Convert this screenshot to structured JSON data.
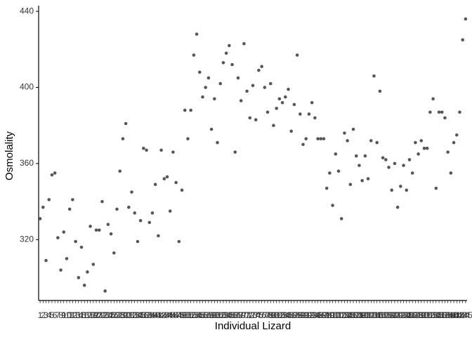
{
  "chart_data": {
    "type": "scatter",
    "x_label": "Individual Lizard",
    "y_label": "Osmolality",
    "categories": [
      "1",
      "2",
      "3",
      "4",
      "5",
      "6",
      "7",
      "8",
      "9",
      "10",
      "11",
      "12",
      "13",
      "14",
      "15",
      "16",
      "17",
      "18",
      "19",
      "20",
      "21",
      "22",
      "23",
      "24",
      "25",
      "26",
      "27",
      "28",
      "29",
      "30",
      "31",
      "32",
      "33",
      "34",
      "35",
      "36",
      "37",
      "38",
      "39",
      "40",
      "41",
      "42",
      "43",
      "44",
      "45",
      "46",
      "47",
      "48",
      "49",
      "50",
      "51",
      "52",
      "53",
      "54",
      "55",
      "56",
      "57",
      "58",
      "59",
      "60",
      "61",
      "62",
      "63",
      "64",
      "65",
      "66",
      "67",
      "68",
      "69",
      "70",
      "71",
      "72",
      "73",
      "74",
      "75",
      "76",
      "77",
      "78",
      "79",
      "80",
      "81",
      "82",
      "83",
      "84",
      "85",
      "86",
      "87",
      "88",
      "89",
      "90",
      "91",
      "92",
      "93",
      "94",
      "95",
      "96",
      "97",
      "98",
      "99",
      "100",
      "101",
      "102",
      "103",
      "104",
      "105",
      "106",
      "107",
      "108",
      "109",
      "110",
      "111",
      "112",
      "113",
      "114",
      "115",
      "116",
      "117",
      "118",
      "119",
      "120",
      "121",
      "122",
      "123",
      "124",
      "125",
      "126",
      "127",
      "128",
      "129",
      "130",
      "131",
      "132",
      "133",
      "134",
      "135",
      "136",
      "137",
      "138",
      "139",
      "140",
      "141",
      "142",
      "143",
      "144",
      "145"
    ],
    "values": [
      331,
      337,
      309,
      341,
      354,
      355,
      321,
      304,
      324,
      310,
      336,
      341,
      319,
      300,
      316,
      296,
      303,
      327,
      307,
      325,
      325,
      340,
      293,
      328,
      323,
      313,
      336,
      356,
      373,
      381,
      337,
      345,
      334,
      319,
      330,
      368,
      367,
      329,
      334,
      349,
      322,
      367,
      352,
      353,
      335,
      366,
      350,
      319,
      346,
      388,
      373,
      388,
      417,
      428,
      408,
      395,
      400,
      405,
      378,
      394,
      371,
      402,
      413,
      418,
      422,
      412,
      366,
      405,
      393,
      423,
      398,
      384,
      401,
      383,
      409,
      411,
      400,
      387,
      402,
      380,
      389,
      394,
      392,
      395,
      399,
      377,
      391,
      417,
      386,
      370,
      373,
      386,
      392,
      384,
      373,
      373,
      373,
      347,
      355,
      338,
      365,
      356,
      331,
      376,
      372,
      349,
      378,
      364,
      359,
      351,
      364,
      352,
      372,
      406,
      371,
      398,
      363,
      362,
      358,
      346,
      360,
      337,
      348,
      359,
      346,
      362,
      355,
      371,
      365,
      372,
      368,
      368,
      387,
      394,
      347,
      387,
      387,
      384,
      366,
      355,
      371,
      375,
      387,
      425,
      436
    ],
    "color": "#3a3a3a",
    "ylim": [
      288,
      443
    ],
    "yticks": [
      320,
      360,
      400,
      440
    ],
    "grid": false
  }
}
